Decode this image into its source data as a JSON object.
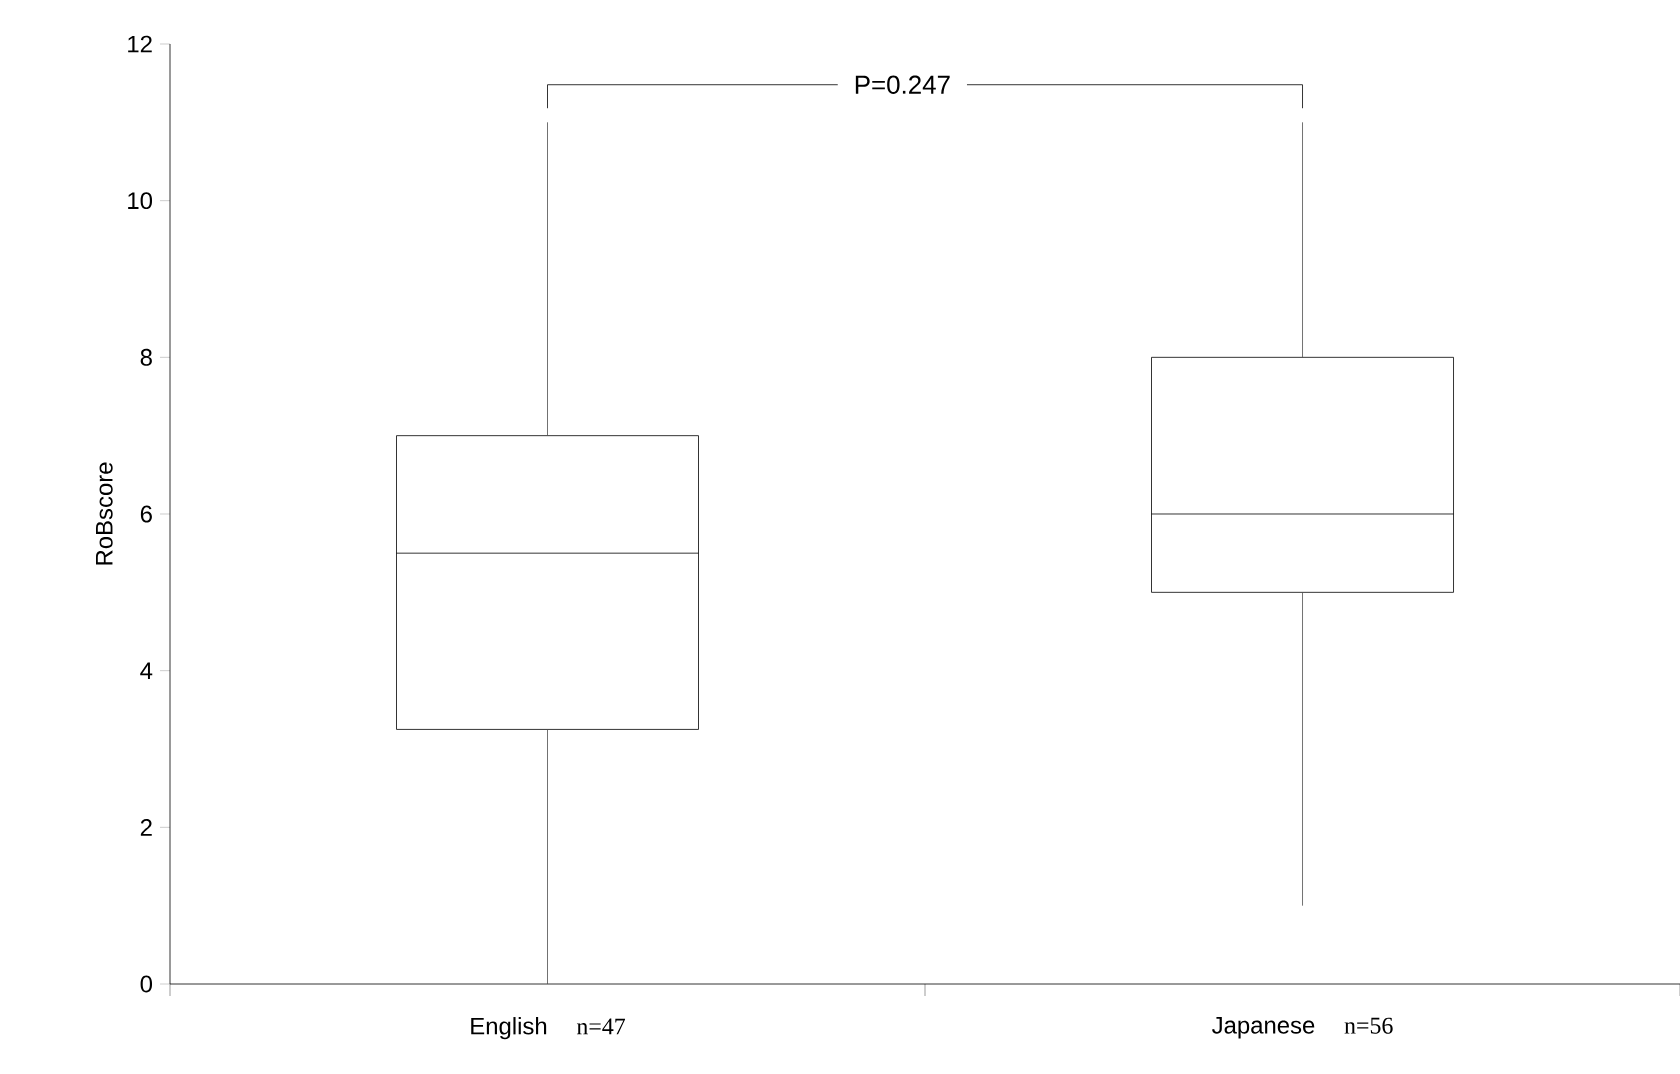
{
  "chart_data": {
    "type": "box",
    "ylabel": "RoBscore",
    "categories": [
      "English",
      "Japanese"
    ],
    "boxes": [
      {
        "low": 0,
        "q1": 3.25,
        "median": 5.5,
        "q3": 7,
        "high": 11
      },
      {
        "low": 1,
        "q1": 5,
        "median": 6,
        "q3": 8,
        "high": 11
      }
    ],
    "ylim": [
      0,
      12
    ],
    "yticks": [
      0,
      2,
      4,
      6,
      8,
      10,
      12
    ],
    "annotations": [
      "P=0.247",
      "n=47",
      "n=56"
    ]
  }
}
